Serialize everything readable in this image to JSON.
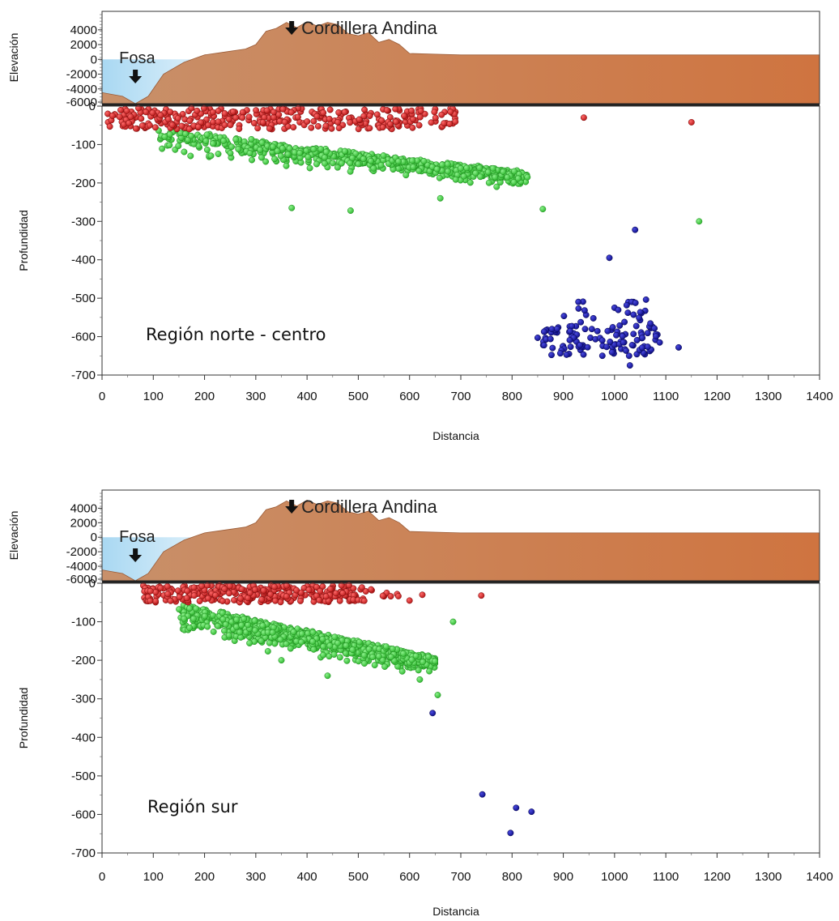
{
  "chart_data": [
    {
      "type": "scatter",
      "region_label": "Región norte - centro",
      "xlabel": "Distancia",
      "ylabel": "Profundidad",
      "xlim": [
        0,
        1400
      ],
      "ylim": [
        -700,
        0
      ],
      "xticks": [
        0,
        100,
        200,
        300,
        400,
        500,
        600,
        700,
        800,
        900,
        1000,
        1100,
        1200,
        1300,
        1400
      ],
      "yticks": [
        0,
        -100,
        -200,
        -300,
        -400,
        -500,
        -600,
        -700
      ],
      "elevation_panel": {
        "ylabel": "Elevación",
        "yticks": [
          4000,
          2000,
          0,
          -2000,
          -4000,
          -6000
        ],
        "ylim": [
          -6000,
          6500
        ],
        "annotations": [
          {
            "text": "Fosa",
            "x": 65
          },
          {
            "text": "Cordillera Andina",
            "x": 370
          }
        ],
        "profile": [
          [
            0,
            -4500
          ],
          [
            40,
            -5000
          ],
          [
            65,
            -6000
          ],
          [
            90,
            -5000
          ],
          [
            120,
            -2000
          ],
          [
            160,
            -400
          ],
          [
            200,
            600
          ],
          [
            240,
            1000
          ],
          [
            280,
            1400
          ],
          [
            300,
            2000
          ],
          [
            320,
            3800
          ],
          [
            340,
            4200
          ],
          [
            360,
            5000
          ],
          [
            380,
            4300
          ],
          [
            400,
            5100
          ],
          [
            420,
            4500
          ],
          [
            440,
            5000
          ],
          [
            460,
            4700
          ],
          [
            480,
            3500
          ],
          [
            500,
            3200
          ],
          [
            520,
            3600
          ],
          [
            540,
            2300
          ],
          [
            560,
            2700
          ],
          [
            580,
            2000
          ],
          [
            600,
            800
          ],
          [
            650,
            700
          ],
          [
            700,
            600
          ],
          [
            800,
            600
          ],
          [
            1000,
            600
          ],
          [
            1400,
            600
          ]
        ]
      },
      "series": [
        {
          "color": "#cc1a1a",
          "clusters": [
            {
              "n": 320,
              "x": [
                10,
                620
              ],
              "depth": [
                5,
                60
              ]
            },
            {
              "n": 25,
              "x": [
                620,
                690
              ],
              "depth": [
                5,
                55
              ]
            }
          ],
          "points": [
            [
              940,
              -30
            ],
            [
              1150,
              -42
            ],
            [
              680,
              -15
            ]
          ]
        },
        {
          "color": "#3fd13f",
          "band": {
            "n": 650,
            "x": [
              110,
              830
            ],
            "top_start": -55,
            "top_end": -170,
            "width": 85
          },
          "points": [
            [
              370,
              -265
            ],
            [
              485,
              -272
            ],
            [
              660,
              -240
            ],
            [
              860,
              -268
            ],
            [
              1165,
              -300
            ],
            [
              830,
              -185
            ],
            [
              770,
              -210
            ]
          ]
        },
        {
          "color": "#10109a",
          "clusters": [
            {
              "n": 110,
              "x": [
                860,
                1090
              ],
              "depth": [
                570,
                650
              ]
            },
            {
              "n": 25,
              "x": [
                900,
                1070
              ],
              "depth": [
                500,
                570
              ]
            }
          ],
          "points": [
            [
              1040,
              -322
            ],
            [
              990,
              -395
            ],
            [
              1125,
              -628
            ],
            [
              850,
              -603
            ],
            [
              1030,
              -675
            ]
          ]
        }
      ]
    },
    {
      "type": "scatter",
      "region_label": "Región sur",
      "xlabel": "Distancia",
      "ylabel": "Profundidad",
      "xlim": [
        0,
        1400
      ],
      "ylim": [
        -700,
        0
      ],
      "xticks": [
        0,
        100,
        200,
        300,
        400,
        500,
        600,
        700,
        800,
        900,
        1000,
        1100,
        1200,
        1300,
        1400
      ],
      "yticks": [
        0,
        -100,
        -200,
        -300,
        -400,
        -500,
        -600,
        -700
      ],
      "elevation_panel": {
        "ylabel": "Elevación",
        "yticks": [
          4000,
          2000,
          0,
          -2000,
          -4000,
          -6000
        ],
        "ylim": [
          -6000,
          6500
        ],
        "annotations": [
          {
            "text": "Fosa",
            "x": 65
          },
          {
            "text": "Cordillera Andina",
            "x": 370
          }
        ],
        "profile": [
          [
            0,
            -4500
          ],
          [
            40,
            -5000
          ],
          [
            65,
            -6000
          ],
          [
            90,
            -5000
          ],
          [
            120,
            -2000
          ],
          [
            160,
            -400
          ],
          [
            200,
            600
          ],
          [
            240,
            1000
          ],
          [
            280,
            1400
          ],
          [
            300,
            2000
          ],
          [
            320,
            3800
          ],
          [
            340,
            4200
          ],
          [
            360,
            5000
          ],
          [
            380,
            4300
          ],
          [
            400,
            5100
          ],
          [
            420,
            4500
          ],
          [
            440,
            5000
          ],
          [
            460,
            4700
          ],
          [
            480,
            3500
          ],
          [
            500,
            3200
          ],
          [
            520,
            3600
          ],
          [
            540,
            2300
          ],
          [
            560,
            2700
          ],
          [
            580,
            2000
          ],
          [
            600,
            800
          ],
          [
            650,
            700
          ],
          [
            700,
            600
          ],
          [
            800,
            600
          ],
          [
            1000,
            600
          ],
          [
            1400,
            600
          ]
        ]
      },
      "series": [
        {
          "color": "#cc1a1a",
          "clusters": [
            {
              "n": 300,
              "x": [
                80,
                500
              ],
              "depth": [
                5,
                50
              ]
            },
            {
              "n": 15,
              "x": [
                500,
                580
              ],
              "depth": [
                10,
                50
              ]
            }
          ],
          "points": [
            [
              740,
              -32
            ],
            [
              625,
              -30
            ],
            [
              600,
              -45
            ]
          ]
        },
        {
          "color": "#3fd13f",
          "band": {
            "n": 950,
            "x": [
              150,
              650
            ],
            "top_start": -50,
            "top_end": -190,
            "width": 100
          },
          "points": [
            [
              685,
              -100
            ],
            [
              655,
              -290
            ],
            [
              620,
              -250
            ],
            [
              440,
              -240
            ],
            [
              350,
              -200
            ],
            [
              160,
              -92
            ]
          ]
        },
        {
          "color": "#10109a",
          "clusters": [],
          "points": [
            [
              645,
              -337
            ],
            [
              742,
              -548
            ],
            [
              808,
              -583
            ],
            [
              838,
              -593
            ],
            [
              797,
              -648
            ]
          ]
        }
      ]
    }
  ]
}
